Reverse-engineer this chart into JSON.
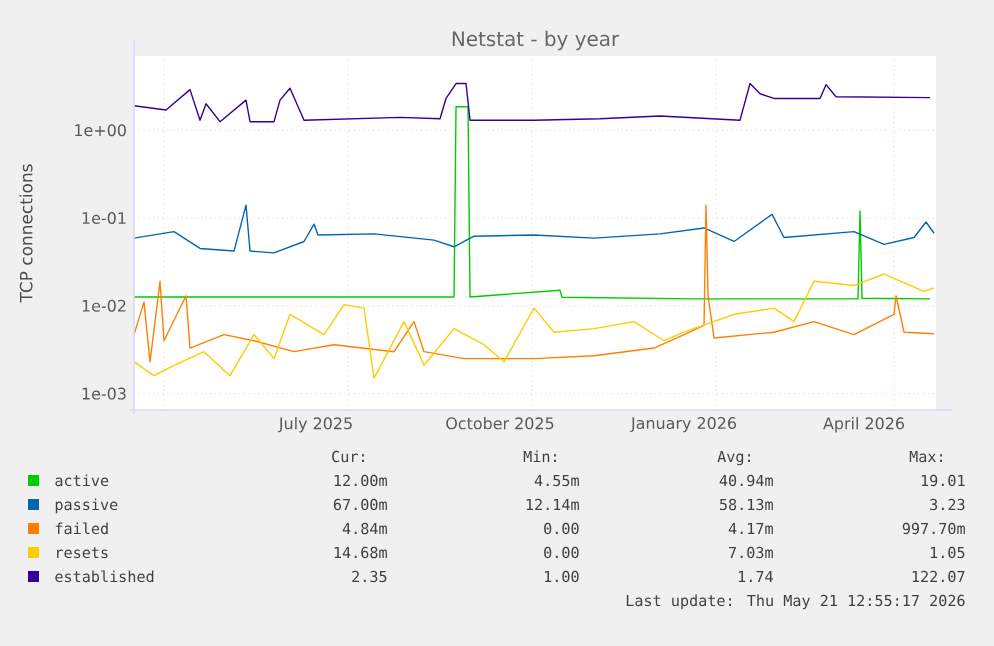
{
  "chart_data": {
    "type": "line",
    "title": "Netstat - by year",
    "ylabel": "TCP connections",
    "xlim": [
      "2025-04-16",
      "2026-05-22"
    ],
    "xticks": [
      {
        "value": "2025-05-01",
        "label": null
      },
      {
        "value": "2025-07-16",
        "label": "July 2025"
      },
      {
        "value": "2025-08-01",
        "label": null
      },
      {
        "value": "2025-10-16",
        "label": "October 2025"
      },
      {
        "value": "2025-11-01",
        "label": null
      },
      {
        "value": "2026-01-16",
        "label": "January 2026"
      },
      {
        "value": "2026-02-01",
        "label": null
      },
      {
        "value": "2026-04-16",
        "label": "April 2026"
      },
      {
        "value": "2026-05-01",
        "label": null
      }
    ],
    "ylim": [
      0.00065,
      7
    ],
    "log": true,
    "yticks": [
      {
        "value": 0.001,
        "label": "1e-03"
      },
      {
        "value": 0.01,
        "label": "1e-02"
      },
      {
        "value": 0.1,
        "label": "1e-01"
      },
      {
        "value": 1,
        "label": "1e+00"
      }
    ],
    "grid": true,
    "legend": "bottom",
    "marker": "none",
    "line_style": "solid",
    "series": [
      {
        "name": "active",
        "color": "#00cc00",
        "x": [
          "2025-04-16",
          "2025-09-23",
          "2025-09-24",
          "2025-09-30",
          "2025-10-01",
          "2025-11-15",
          "2025-11-16",
          "2026-01-21",
          "2026-04-13",
          "2026-04-14",
          "2026-04-15",
          "2026-05-19"
        ],
        "values": [
          0.0126,
          0.0126,
          1.85,
          1.85,
          0.0126,
          0.015,
          0.0125,
          0.012,
          0.012,
          0.12,
          0.0122,
          0.012
        ]
      },
      {
        "name": "passive",
        "color": "#0066b3",
        "x": [
          "2025-04-16",
          "2025-05-06",
          "2025-05-19",
          "2025-06-05",
          "2025-06-11",
          "2025-06-13",
          "2025-06-25",
          "2025-07-10",
          "2025-07-15",
          "2025-07-17",
          "2025-08-14",
          "2025-09-13",
          "2025-09-23",
          "2025-10-03",
          "2025-11-02",
          "2025-12-02",
          "2026-01-04",
          "2026-01-26",
          "2026-02-10",
          "2026-03-01",
          "2026-03-07",
          "2026-04-11",
          "2026-04-26",
          "2026-05-11",
          "2026-05-17",
          "2026-05-21"
        ],
        "values": [
          0.059,
          0.07,
          0.045,
          0.042,
          0.14,
          0.042,
          0.04,
          0.054,
          0.085,
          0.064,
          0.066,
          0.056,
          0.047,
          0.062,
          0.064,
          0.059,
          0.066,
          0.077,
          0.054,
          0.11,
          0.06,
          0.07,
          0.05,
          0.06,
          0.09,
          0.067
        ]
      },
      {
        "name": "failed",
        "color": "#ff8000",
        "x": [
          "2025-04-16",
          "2025-04-21",
          "2025-04-24",
          "2025-04-29",
          "2025-05-01",
          "2025-05-12",
          "2025-05-14",
          "2025-05-31",
          "2025-06-15",
          "2025-07-05",
          "2025-07-25",
          "2025-08-24",
          "2025-09-03",
          "2025-09-08",
          "2025-09-28",
          "2025-11-02",
          "2025-12-02",
          "2026-01-01",
          "2026-01-16",
          "2026-01-26",
          "2026-01-27",
          "2026-01-28",
          "2026-01-31",
          "2026-03-02",
          "2026-03-22",
          "2026-04-11",
          "2026-05-01",
          "2026-05-02",
          "2026-05-06",
          "2026-05-21"
        ],
        "values": [
          0.0047,
          0.011,
          0.0023,
          0.019,
          0.004,
          0.013,
          0.0033,
          0.0047,
          0.004,
          0.003,
          0.0036,
          0.003,
          0.0066,
          0.003,
          0.0025,
          0.0025,
          0.0027,
          0.0033,
          0.0047,
          0.006,
          0.14,
          0.013,
          0.0043,
          0.005,
          0.0066,
          0.0047,
          0.008,
          0.013,
          0.005,
          0.0048
        ]
      },
      {
        "name": "resets",
        "color": "#ffcc00",
        "x": [
          "2025-04-16",
          "2025-04-26",
          "2025-05-06",
          "2025-05-21",
          "2025-06-03",
          "2025-06-15",
          "2025-06-25",
          "2025-07-03",
          "2025-07-20",
          "2025-07-30",
          "2025-08-09",
          "2025-08-14",
          "2025-08-29",
          "2025-09-08",
          "2025-09-23",
          "2025-10-08",
          "2025-10-18",
          "2025-11-02",
          "2025-11-12",
          "2025-12-02",
          "2025-12-22",
          "2026-01-06",
          "2026-01-16",
          "2026-02-10",
          "2026-03-02",
          "2026-03-12",
          "2026-03-22",
          "2026-04-11",
          "2026-04-26",
          "2026-05-16",
          "2026-05-21"
        ],
        "values": [
          0.0023,
          0.0016,
          0.0021,
          0.003,
          0.0016,
          0.0047,
          0.0025,
          0.008,
          0.0047,
          0.0103,
          0.0094,
          0.0015,
          0.0066,
          0.0021,
          0.0055,
          0.0036,
          0.0023,
          0.0094,
          0.005,
          0.0055,
          0.0066,
          0.004,
          0.005,
          0.008,
          0.0094,
          0.0066,
          0.019,
          0.017,
          0.023,
          0.0146,
          0.016
        ]
      },
      {
        "name": "established",
        "color": "#330099",
        "x": [
          "2025-04-16",
          "2025-05-02",
          "2025-05-14",
          "2025-05-19",
          "2025-05-22",
          "2025-05-29",
          "2025-06-11",
          "2025-06-13",
          "2025-06-25",
          "2025-06-28",
          "2025-07-03",
          "2025-07-10",
          "2025-08-27",
          "2025-09-16",
          "2025-09-19",
          "2025-09-24",
          "2025-09-29",
          "2025-10-01",
          "2025-11-02",
          "2025-12-05",
          "2026-01-04",
          "2026-02-13",
          "2026-02-18",
          "2026-02-23",
          "2026-03-02",
          "2026-03-25",
          "2026-03-28",
          "2026-04-02",
          "2026-05-19"
        ],
        "values": [
          1.9,
          1.7,
          2.9,
          1.3,
          2.0,
          1.25,
          2.2,
          1.25,
          1.25,
          2.2,
          3.0,
          1.3,
          1.4,
          1.35,
          2.3,
          3.4,
          3.4,
          1.3,
          1.3,
          1.35,
          1.45,
          1.3,
          3.4,
          2.6,
          2.3,
          2.3,
          3.3,
          2.4,
          2.35
        ]
      }
    ],
    "annotations": [
      "Cur:",
      "Min:",
      "Avg:",
      "Max:",
      "12.00m",
      "4.55m",
      "40.94m",
      "19.01",
      "67.00m",
      "12.14m",
      "58.13m",
      "3.23",
      "4.84m",
      "0.00",
      "4.17m",
      "997.70m",
      "14.68m",
      "0.00",
      "7.03m",
      "1.05",
      "2.35",
      "1.00",
      "1.74",
      "122.07",
      "Last update: Thu May 21 12:55:17 2026"
    ]
  }
}
